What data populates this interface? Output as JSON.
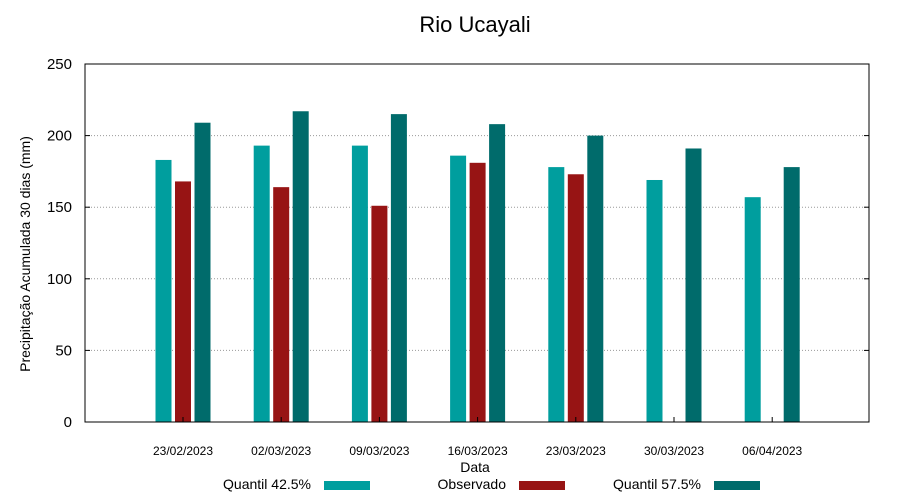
{
  "chart_data": {
    "type": "bar",
    "title": "Rio Ucayali",
    "xlabel": "Data",
    "ylabel": "Precipitação Acumulada 30 dias (mm)",
    "ylim": [
      0,
      250
    ],
    "yticks": [
      0,
      50,
      100,
      150,
      200,
      250
    ],
    "grid": true,
    "legend_position": "bottom",
    "categories": [
      "23/02/2023",
      "02/03/2023",
      "09/03/2023",
      "16/03/2023",
      "23/03/2023",
      "30/03/2023",
      "06/04/2023"
    ],
    "series": [
      {
        "name": "Quantil 42.5%",
        "color": "#009e9e",
        "values": [
          183,
          193,
          193,
          186,
          178,
          169,
          157
        ]
      },
      {
        "name": "Observado",
        "color": "#971414",
        "values": [
          168,
          164,
          151,
          181,
          173,
          null,
          null
        ]
      },
      {
        "name": "Quantil 57.5%",
        "color": "#006b6b",
        "values": [
          209,
          217,
          215,
          208,
          200,
          191,
          178
        ]
      }
    ]
  }
}
